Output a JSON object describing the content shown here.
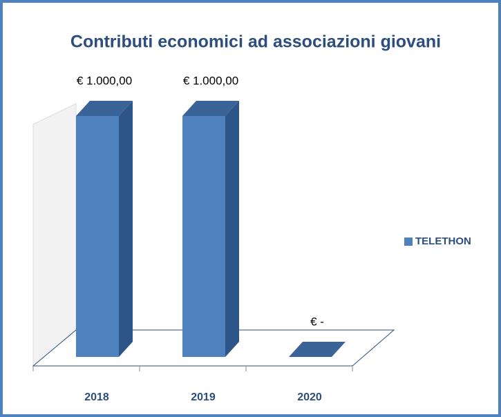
{
  "chart_data": {
    "type": "bar3d",
    "title": "Contributi economici ad associazioni giovani",
    "categories": [
      "2018",
      "2019",
      "2020"
    ],
    "series": [
      {
        "name": "TELETHON",
        "color": "#4f81bd",
        "values": [
          1000,
          1000,
          0
        ],
        "value_labels": [
          "€ 1.000,00",
          "€ 1.000,00",
          "€ -"
        ]
      }
    ]
  }
}
